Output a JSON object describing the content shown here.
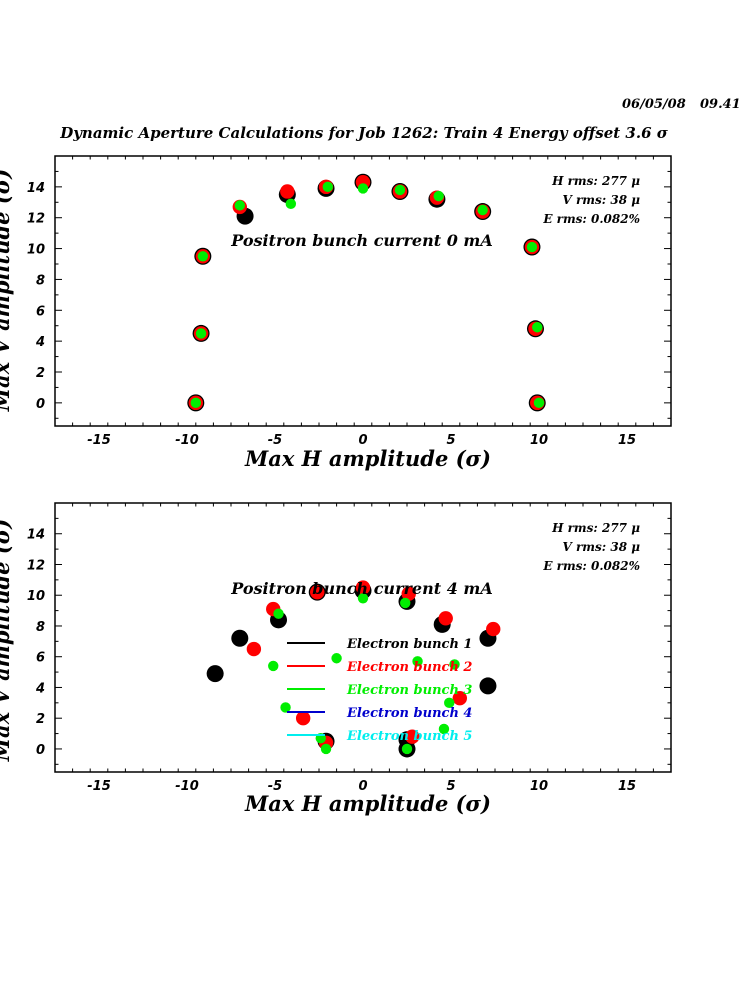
{
  "header": {
    "date": "06/05/08",
    "time": "09.41",
    "title": "Dynamic Aperture Calculations for Job 1262:  Train 4   Energy offset  3.6 σ"
  },
  "chart_data": [
    {
      "type": "scatter",
      "subtitle": "Positron bunch current  0 mA",
      "xlabel": "Max H amplitude (σ)",
      "ylabel": "Max V amplitude (σ)",
      "xlim": [
        -17.5,
        17.5
      ],
      "ylim": [
        -1.5,
        16
      ],
      "xticks": [
        -15,
        -10,
        -5,
        0,
        5,
        10,
        15
      ],
      "yticks": [
        0,
        2,
        4,
        6,
        8,
        10,
        12,
        14
      ],
      "stats": [
        "H rms: 277 μ",
        "V rms: 38 μ",
        "E rms: 0.082%"
      ],
      "legend": "none",
      "series": [
        {
          "name": "Electron bunch 1",
          "color": "#000000",
          "points": [
            [
              -9.5,
              0
            ],
            [
              -9.2,
              4.5
            ],
            [
              -9.1,
              9.5
            ],
            [
              -6.7,
              12.1
            ],
            [
              -4.3,
              13.5
            ],
            [
              -2.1,
              13.9
            ],
            [
              0,
              14.3
            ],
            [
              2.1,
              13.7
            ],
            [
              4.2,
              13.2
            ],
            [
              6.8,
              12.4
            ],
            [
              9.6,
              10.1
            ],
            [
              9.8,
              4.8
            ],
            [
              9.9,
              0
            ]
          ]
        },
        {
          "name": "Electron bunch 2",
          "color": "#ff0000",
          "points": [
            [
              -9.5,
              0
            ],
            [
              -9.2,
              4.5
            ],
            [
              -9.1,
              9.5
            ],
            [
              -7,
              12.7
            ],
            [
              -4.3,
              13.7
            ],
            [
              -2.1,
              14.0
            ],
            [
              0,
              14.3
            ],
            [
              2.1,
              13.7
            ],
            [
              4.2,
              13.3
            ],
            [
              6.8,
              12.4
            ],
            [
              9.6,
              10.1
            ],
            [
              9.8,
              4.8
            ],
            [
              9.9,
              0
            ]
          ]
        },
        {
          "name": "Electron bunch 3",
          "color": "#00ee00",
          "points": [
            [
              -9.5,
              0
            ],
            [
              -9.2,
              4.5
            ],
            [
              -9.1,
              9.5
            ],
            [
              -7,
              12.8
            ],
            [
              -4.1,
              12.9
            ],
            [
              -2.0,
              14.0
            ],
            [
              0,
              13.9
            ],
            [
              2.1,
              13.8
            ],
            [
              4.3,
              13.4
            ],
            [
              6.8,
              12.5
            ],
            [
              9.6,
              10.1
            ],
            [
              9.9,
              4.9
            ],
            [
              10.0,
              0
            ]
          ]
        }
      ]
    },
    {
      "type": "scatter",
      "subtitle": "Positron bunch current  4 mA",
      "xlabel": "Max H amplitude (σ)",
      "ylabel": "Max V amplitude (σ)",
      "xlim": [
        -17.5,
        17.5
      ],
      "ylim": [
        -1.5,
        16
      ],
      "xticks": [
        -15,
        -10,
        -5,
        0,
        5,
        10,
        15
      ],
      "yticks": [
        0,
        2,
        4,
        6,
        8,
        10,
        12,
        14
      ],
      "stats": [
        "H rms: 277 μ",
        "V rms: 38 μ",
        "E rms: 0.082%"
      ],
      "legend": "center",
      "series": [
        {
          "name": "Electron bunch 1",
          "color": "#000000",
          "points": [
            [
              -8.4,
              4.9
            ],
            [
              -7.0,
              7.2
            ],
            [
              -4.8,
              8.4
            ],
            [
              -2.6,
              10.2
            ],
            [
              0,
              10.3
            ],
            [
              2.5,
              9.6
            ],
            [
              4.5,
              8.1
            ],
            [
              7.1,
              7.2
            ],
            [
              7.1,
              4.1
            ],
            [
              -2.1,
              0.5
            ],
            [
              2.5,
              0.6
            ],
            [
              2.5,
              0
            ]
          ]
        },
        {
          "name": "Electron bunch 2",
          "color": "#ff0000",
          "points": [
            [
              -5.1,
              9.1
            ],
            [
              -6.2,
              6.5
            ],
            [
              -3.4,
              2.0
            ],
            [
              -2.6,
              10.2
            ],
            [
              0,
              10.5
            ],
            [
              2.6,
              10.1
            ],
            [
              4.7,
              8.5
            ],
            [
              7.4,
              7.8
            ],
            [
              5.5,
              3.3
            ],
            [
              -2.1,
              0.4
            ],
            [
              2.8,
              0.8
            ]
          ]
        },
        {
          "name": "Electron bunch 3",
          "color": "#00ee00",
          "points": [
            [
              -4.8,
              8.8
            ],
            [
              -5.1,
              5.4
            ],
            [
              -4.4,
              2.7
            ],
            [
              -1.5,
              5.9
            ],
            [
              -2.4,
              0.7
            ],
            [
              -2.1,
              0
            ],
            [
              0,
              9.8
            ],
            [
              2.4,
              9.5
            ],
            [
              3.1,
              5.7
            ],
            [
              5.2,
              5.5
            ],
            [
              4.9,
              3.0
            ],
            [
              4.6,
              1.3
            ],
            [
              2.5,
              0
            ]
          ]
        },
        {
          "name": "Electron bunch 4",
          "color": "#0000cc",
          "points": []
        },
        {
          "name": "Electron bunch 5",
          "color": "#00eeee",
          "points": []
        }
      ]
    }
  ]
}
